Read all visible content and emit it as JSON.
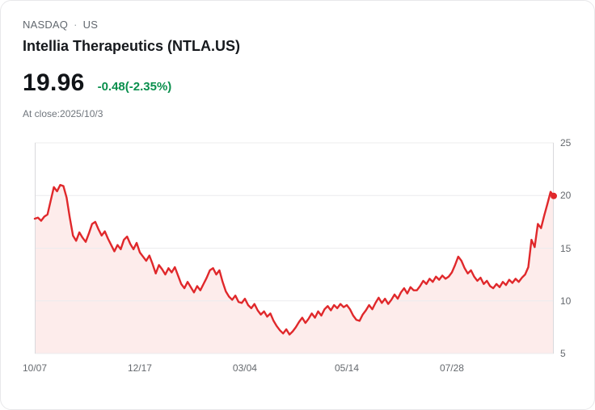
{
  "header": {
    "market": "NASDAQ",
    "separator": "·",
    "region": "US",
    "title": "Intellia Therapeutics (NTLA.US)"
  },
  "quote": {
    "price": "19.96",
    "change": "-0.48(-2.35%)",
    "change_color": "#0a8f4d",
    "close_note": "At close:2025/10/3"
  },
  "chart_data": {
    "type": "line",
    "ylim": [
      5,
      25
    ],
    "y_ticks": [
      25,
      20,
      15,
      10,
      5
    ],
    "x_tick_labels": [
      "10/07",
      "12/17",
      "03/04",
      "05/14",
      "07/28"
    ],
    "x_tick_indices": [
      0,
      33,
      66,
      98,
      131
    ],
    "grid": true,
    "legend": "none",
    "line_color": "#e0282b",
    "fill_color": "#fdeceb",
    "axis_color": "#d9d9dc",
    "grid_color": "#ececee",
    "values": [
      17.8,
      17.9,
      17.6,
      18.0,
      18.2,
      19.5,
      20.8,
      20.4,
      21.0,
      20.9,
      19.8,
      17.9,
      16.2,
      15.7,
      16.5,
      16.0,
      15.6,
      16.4,
      17.3,
      17.5,
      16.8,
      16.2,
      16.6,
      15.9,
      15.3,
      14.7,
      15.3,
      14.9,
      15.8,
      16.1,
      15.4,
      14.9,
      15.5,
      14.6,
      14.2,
      13.8,
      14.3,
      13.5,
      12.6,
      13.4,
      13.0,
      12.5,
      13.1,
      12.7,
      13.2,
      12.4,
      11.6,
      11.2,
      11.8,
      11.3,
      10.8,
      11.4,
      11.0,
      11.6,
      12.2,
      12.9,
      13.1,
      12.5,
      12.9,
      11.8,
      10.9,
      10.4,
      10.1,
      10.5,
      9.9,
      9.8,
      10.2,
      9.6,
      9.3,
      9.7,
      9.1,
      8.7,
      9.0,
      8.5,
      8.8,
      8.1,
      7.6,
      7.2,
      6.9,
      7.3,
      6.8,
      7.1,
      7.5,
      8.0,
      8.4,
      7.9,
      8.3,
      8.8,
      8.4,
      9.0,
      8.6,
      9.2,
      9.5,
      9.1,
      9.6,
      9.3,
      9.7,
      9.4,
      9.6,
      9.2,
      8.6,
      8.2,
      8.1,
      8.7,
      9.1,
      9.6,
      9.2,
      9.8,
      10.3,
      9.8,
      10.2,
      9.7,
      10.1,
      10.6,
      10.2,
      10.8,
      11.2,
      10.7,
      11.3,
      11.0,
      11.0,
      11.4,
      11.9,
      11.6,
      12.1,
      11.8,
      12.3,
      12.0,
      12.4,
      12.1,
      12.3,
      12.7,
      13.4,
      14.2,
      13.8,
      13.1,
      12.6,
      12.9,
      12.3,
      11.9,
      12.2,
      11.6,
      11.9,
      11.4,
      11.2,
      11.6,
      11.3,
      11.8,
      11.5,
      12.0,
      11.7,
      12.1,
      11.8,
      12.2,
      12.5,
      13.2,
      15.8,
      15.1,
      17.3,
      16.9,
      18.1,
      19.2,
      20.35,
      19.96
    ]
  }
}
